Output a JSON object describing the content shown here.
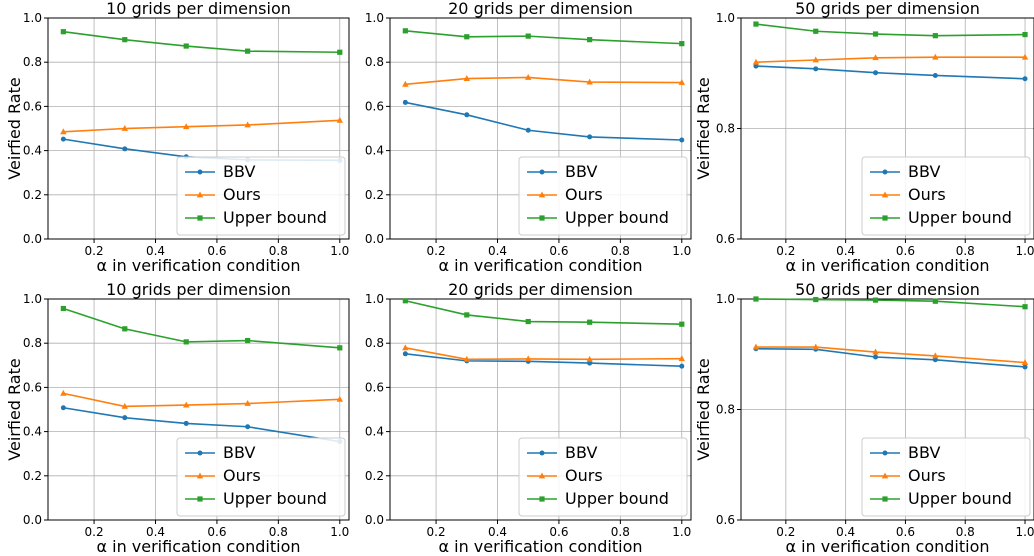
{
  "chart_data": [
    {
      "type": "line",
      "title": "10 grids per dimension",
      "xlabel": "α in verification condition",
      "ylabel": "Veirfied Rate",
      "x": [
        0.1,
        0.3,
        0.5,
        0.7,
        1.0
      ],
      "xlim": [
        0.05,
        1.03
      ],
      "ylim": [
        0.0,
        1.0
      ],
      "xticks": [
        "0.2",
        "0.4",
        "0.6",
        "0.8",
        "1.0"
      ],
      "yticks": [
        "0.0",
        "0.2",
        "0.4",
        "0.6",
        "0.8",
        "1.0"
      ],
      "grid": true,
      "legend": "lower-right",
      "series": [
        {
          "name": "BBV",
          "color": "#1f77b4",
          "marker": "circle",
          "values": [
            0.452,
            0.408,
            0.372,
            0.358,
            0.356
          ]
        },
        {
          "name": "Ours",
          "color": "#ff7f0e",
          "marker": "triangle",
          "values": [
            0.485,
            0.5,
            0.508,
            0.516,
            0.537
          ]
        },
        {
          "name": "Upper bound",
          "color": "#2ca02c",
          "marker": "square",
          "values": [
            0.938,
            0.902,
            0.873,
            0.85,
            0.845
          ]
        }
      ]
    },
    {
      "type": "line",
      "title": "20 grids per dimension",
      "xlabel": "α in verification condition",
      "ylabel": "",
      "x": [
        0.1,
        0.3,
        0.5,
        0.7,
        1.0
      ],
      "xlim": [
        0.05,
        1.03
      ],
      "ylim": [
        0.0,
        1.0
      ],
      "xticks": [
        "0.2",
        "0.4",
        "0.6",
        "0.8",
        "1.0"
      ],
      "yticks": [
        "0.0",
        "0.2",
        "0.4",
        "0.6",
        "0.8",
        "1.0"
      ],
      "grid": true,
      "legend": "lower-right",
      "series": [
        {
          "name": "BBV",
          "color": "#1f77b4",
          "marker": "circle",
          "values": [
            0.618,
            0.562,
            0.492,
            0.462,
            0.448
          ]
        },
        {
          "name": "Ours",
          "color": "#ff7f0e",
          "marker": "triangle",
          "values": [
            0.7,
            0.726,
            0.731,
            0.71,
            0.708
          ]
        },
        {
          "name": "Upper bound",
          "color": "#2ca02c",
          "marker": "square",
          "values": [
            0.942,
            0.915,
            0.918,
            0.902,
            0.884
          ]
        }
      ]
    },
    {
      "type": "line",
      "title": "50 grids per dimension",
      "xlabel": "α in verification condition",
      "ylabel": "Veirfied Rate",
      "x": [
        0.1,
        0.3,
        0.5,
        0.7,
        1.0
      ],
      "xlim": [
        0.05,
        1.03
      ],
      "ylim": [
        0.6,
        1.0
      ],
      "xticks": [
        "0.2",
        "0.4",
        "0.6",
        "0.8",
        "1.0"
      ],
      "yticks": [
        "0.6",
        "0.8",
        "1.0"
      ],
      "grid": true,
      "legend": "lower-right",
      "series": [
        {
          "name": "BBV",
          "color": "#1f77b4",
          "marker": "circle",
          "values": [
            0.913,
            0.908,
            0.901,
            0.896,
            0.89
          ]
        },
        {
          "name": "Ours",
          "color": "#ff7f0e",
          "marker": "triangle",
          "values": [
            0.92,
            0.924,
            0.928,
            0.929,
            0.929
          ]
        },
        {
          "name": "Upper bound",
          "color": "#2ca02c",
          "marker": "square",
          "values": [
            0.989,
            0.976,
            0.971,
            0.968,
            0.97
          ]
        }
      ]
    },
    {
      "type": "line",
      "title": "10 grids per dimension",
      "xlabel": "α in verification condition",
      "ylabel": "Veirfied Rate",
      "x": [
        0.1,
        0.3,
        0.5,
        0.7,
        1.0
      ],
      "xlim": [
        0.05,
        1.03
      ],
      "ylim": [
        0.0,
        1.0
      ],
      "xticks": [
        "0.2",
        "0.4",
        "0.6",
        "0.8",
        "1.0"
      ],
      "yticks": [
        "0.0",
        "0.2",
        "0.4",
        "0.6",
        "0.8",
        "1.0"
      ],
      "grid": true,
      "legend": "lower-right",
      "series": [
        {
          "name": "BBV",
          "color": "#1f77b4",
          "marker": "circle",
          "values": [
            0.508,
            0.463,
            0.437,
            0.422,
            0.355
          ]
        },
        {
          "name": "Ours",
          "color": "#ff7f0e",
          "marker": "triangle",
          "values": [
            0.573,
            0.514,
            0.52,
            0.527,
            0.546
          ]
        },
        {
          "name": "Upper bound",
          "color": "#2ca02c",
          "marker": "square",
          "values": [
            0.957,
            0.865,
            0.806,
            0.812,
            0.779
          ]
        }
      ]
    },
    {
      "type": "line",
      "title": "20 grids per dimension",
      "xlabel": "α in verification condition",
      "ylabel": "",
      "x": [
        0.1,
        0.3,
        0.5,
        0.7,
        1.0
      ],
      "xlim": [
        0.05,
        1.03
      ],
      "ylim": [
        0.0,
        1.0
      ],
      "xticks": [
        "0.2",
        "0.4",
        "0.6",
        "0.8",
        "1.0"
      ],
      "yticks": [
        "0.0",
        "0.2",
        "0.4",
        "0.6",
        "0.8",
        "1.0"
      ],
      "grid": true,
      "legend": "lower-right",
      "series": [
        {
          "name": "BBV",
          "color": "#1f77b4",
          "marker": "circle",
          "values": [
            0.752,
            0.72,
            0.718,
            0.71,
            0.696
          ]
        },
        {
          "name": "Ours",
          "color": "#ff7f0e",
          "marker": "triangle",
          "values": [
            0.779,
            0.727,
            0.729,
            0.727,
            0.73
          ]
        },
        {
          "name": "Upper bound",
          "color": "#2ca02c",
          "marker": "square",
          "values": [
            0.992,
            0.928,
            0.898,
            0.895,
            0.886
          ]
        }
      ]
    },
    {
      "type": "line",
      "title": "50 grids per dimension",
      "xlabel": "α in verification condition",
      "ylabel": "Veirfied Rate",
      "x": [
        0.1,
        0.3,
        0.5,
        0.7,
        1.0
      ],
      "xlim": [
        0.05,
        1.03
      ],
      "ylim": [
        0.6,
        1.0
      ],
      "xticks": [
        "0.2",
        "0.4",
        "0.6",
        "0.8",
        "1.0"
      ],
      "yticks": [
        "0.6",
        "0.8",
        "1.0"
      ],
      "grid": true,
      "legend": "lower-right",
      "series": [
        {
          "name": "BBV",
          "color": "#1f77b4",
          "marker": "circle",
          "values": [
            0.91,
            0.909,
            0.895,
            0.89,
            0.877
          ]
        },
        {
          "name": "Ours",
          "color": "#ff7f0e",
          "marker": "triangle",
          "values": [
            0.913,
            0.913,
            0.904,
            0.897,
            0.885
          ]
        },
        {
          "name": "Upper bound",
          "color": "#2ca02c",
          "marker": "square",
          "values": [
            1.0,
            0.999,
            0.998,
            0.996,
            0.986
          ]
        }
      ]
    }
  ]
}
